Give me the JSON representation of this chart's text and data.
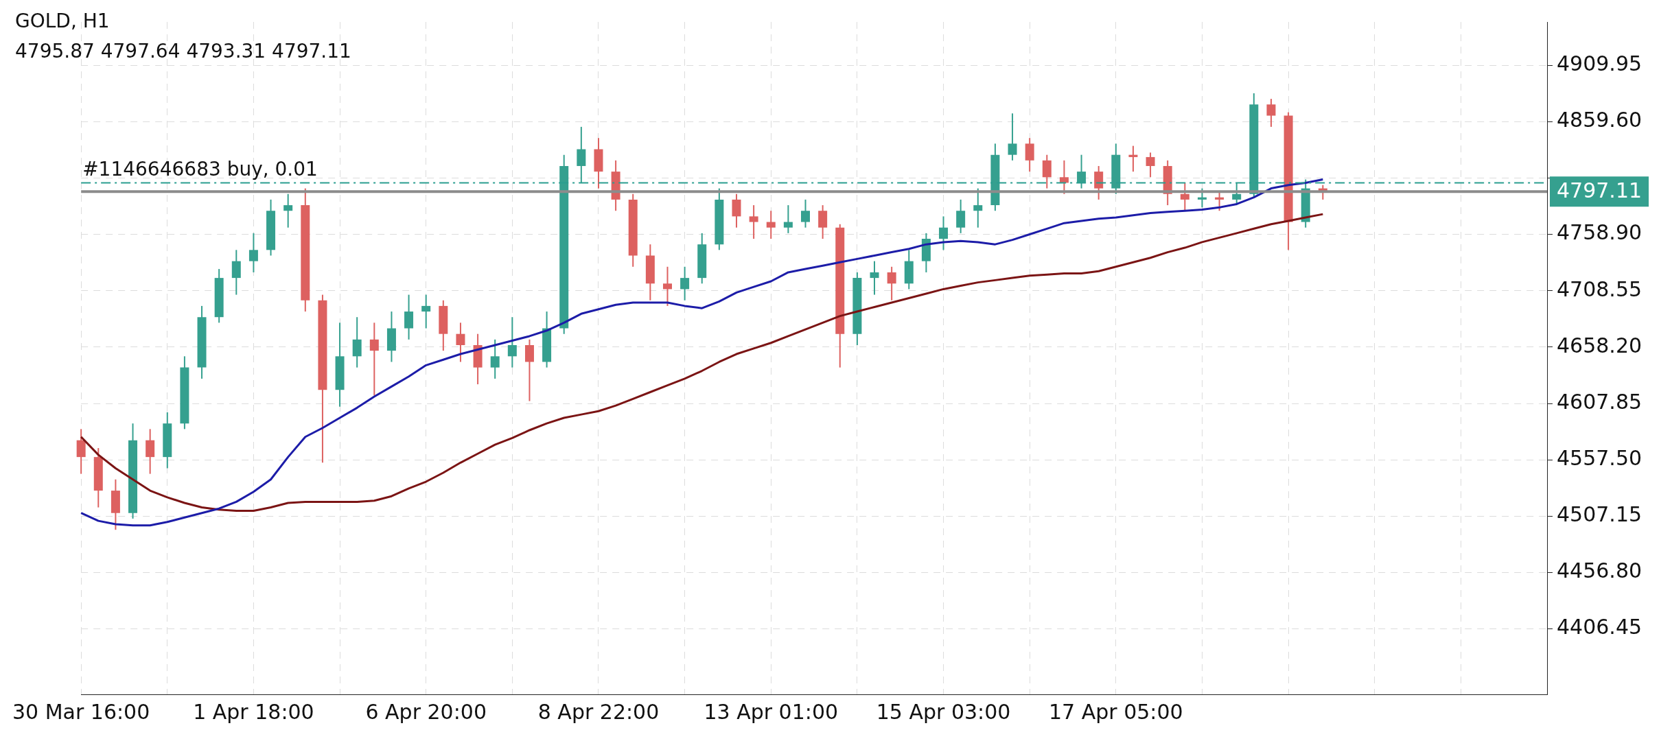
{
  "chart_data": {
    "type": "candlestick",
    "title": "GOLD, H1",
    "subtitle": "4795.87 4797.64 4793.31 4797.11",
    "categories": [
      "30 Mar 16:00",
      null,
      null,
      null,
      null,
      null,
      null,
      null,
      null,
      null,
      "1 Apr 18:00",
      null,
      null,
      null,
      null,
      null,
      null,
      null,
      null,
      null,
      "6 Apr 20:00",
      null,
      null,
      null,
      null,
      null,
      null,
      null,
      null,
      null,
      "8 Apr 22:00",
      null,
      null,
      null,
      null,
      null,
      null,
      null,
      null,
      null,
      "13 Apr 01:00",
      null,
      null,
      null,
      null,
      null,
      null,
      null,
      null,
      null,
      "15 Apr 03:00",
      null,
      null,
      null,
      null,
      null,
      null,
      null,
      null,
      null,
      "17 Apr 05:00",
      null,
      null,
      null,
      null,
      null,
      null,
      null,
      null,
      null,
      null,
      null,
      null,
      null,
      null,
      null,
      null,
      null,
      null,
      null,
      null,
      null,
      null,
      null,
      null,
      null
    ],
    "ohlc": [
      [
        4575,
        4585,
        4545,
        4560
      ],
      [
        4560,
        4568,
        4515,
        4530
      ],
      [
        4530,
        4540,
        4495,
        4510
      ],
      [
        4510,
        4590,
        4505,
        4575
      ],
      [
        4575,
        4585,
        4545,
        4560
      ],
      [
        4560,
        4600,
        4550,
        4590
      ],
      [
        4590,
        4650,
        4585,
        4640
      ],
      [
        4640,
        4695,
        4630,
        4685
      ],
      [
        4685,
        4728,
        4680,
        4720
      ],
      [
        4720,
        4745,
        4705,
        4735
      ],
      [
        4735,
        4760,
        4725,
        4745
      ],
      [
        4745,
        4790,
        4740,
        4780
      ],
      [
        4780,
        4795,
        4765,
        4785
      ],
      [
        4785,
        4800,
        4690,
        4700
      ],
      [
        4700,
        4705,
        4555,
        4620
      ],
      [
        4620,
        4680,
        4605,
        4650
      ],
      [
        4650,
        4685,
        4640,
        4665
      ],
      [
        4665,
        4680,
        4615,
        4655
      ],
      [
        4655,
        4690,
        4645,
        4675
      ],
      [
        4675,
        4705,
        4665,
        4690
      ],
      [
        4690,
        4705,
        4675,
        4695
      ],
      [
        4695,
        4700,
        4655,
        4670
      ],
      [
        4670,
        4680,
        4645,
        4660
      ],
      [
        4660,
        4670,
        4625,
        4640
      ],
      [
        4640,
        4665,
        4630,
        4650
      ],
      [
        4650,
        4685,
        4640,
        4660
      ],
      [
        4660,
        4665,
        4610,
        4645
      ],
      [
        4645,
        4690,
        4640,
        4675
      ],
      [
        4675,
        4830,
        4670,
        4820
      ],
      [
        4820,
        4855,
        4805,
        4835
      ],
      [
        4835,
        4845,
        4800,
        4815
      ],
      [
        4815,
        4825,
        4780,
        4790
      ],
      [
        4790,
        4795,
        4730,
        4740
      ],
      [
        4740,
        4750,
        4700,
        4715
      ],
      [
        4715,
        4730,
        4695,
        4710
      ],
      [
        4710,
        4730,
        4700,
        4720
      ],
      [
        4720,
        4760,
        4715,
        4750
      ],
      [
        4750,
        4800,
        4745,
        4790
      ],
      [
        4790,
        4795,
        4765,
        4775
      ],
      [
        4775,
        4785,
        4755,
        4770
      ],
      [
        4770,
        4780,
        4755,
        4765
      ],
      [
        4765,
        4785,
        4760,
        4770
      ],
      [
        4770,
        4790,
        4765,
        4780
      ],
      [
        4780,
        4785,
        4755,
        4765
      ],
      [
        4765,
        4768,
        4640,
        4670
      ],
      [
        4670,
        4725,
        4660,
        4720
      ],
      [
        4720,
        4735,
        4705,
        4725
      ],
      [
        4725,
        4730,
        4700,
        4715
      ],
      [
        4715,
        4745,
        4710,
        4735
      ],
      [
        4735,
        4760,
        4725,
        4755
      ],
      [
        4755,
        4775,
        4745,
        4765
      ],
      [
        4765,
        4790,
        4760,
        4780
      ],
      [
        4780,
        4800,
        4765,
        4785
      ],
      [
        4785,
        4840,
        4780,
        4830
      ],
      [
        4830,
        4867,
        4825,
        4840
      ],
      [
        4840,
        4845,
        4815,
        4825
      ],
      [
        4825,
        4830,
        4800,
        4810
      ],
      [
        4810,
        4825,
        4795,
        4805
      ],
      [
        4805,
        4830,
        4800,
        4815
      ],
      [
        4815,
        4820,
        4790,
        4800
      ],
      [
        4800,
        4840,
        4795,
        4830
      ],
      [
        4830,
        4838,
        4815,
        4828
      ],
      [
        4828,
        4832,
        4810,
        4820
      ],
      [
        4820,
        4825,
        4785,
        4795
      ],
      [
        4795,
        4805,
        4780,
        4790
      ],
      [
        4790,
        4800,
        4783,
        4792
      ],
      [
        4792,
        4798,
        4780,
        4790
      ],
      [
        4790,
        4805,
        4785,
        4795
      ],
      [
        4795,
        4885,
        4792,
        4875
      ],
      [
        4875,
        4880,
        4855,
        4865
      ],
      [
        4865,
        4868,
        4745,
        4770
      ],
      [
        4770,
        4808,
        4765,
        4800
      ],
      [
        4800,
        4803,
        4790,
        4797.11
      ],
      null,
      null,
      null,
      null,
      null,
      null,
      null,
      null,
      null,
      null,
      null,
      null,
      null
    ],
    "series": [
      {
        "type": "line",
        "color": "#1c1ca8",
        "values": [
          4510,
          4503,
          4500,
          4499,
          4499,
          4502,
          4506,
          4510,
          4514,
          4520,
          4529,
          4540,
          4560,
          4578,
          4586,
          4595,
          4604,
          4614,
          4623,
          4632,
          4642,
          4647,
          4652,
          4656,
          4660,
          4664,
          4668,
          4673,
          4680,
          4688,
          4692,
          4696,
          4698,
          4698,
          4698,
          4695,
          4693,
          4699,
          4707,
          4712,
          4717,
          4725,
          4728,
          4731,
          4734,
          4737,
          4740,
          4743,
          4746,
          4750,
          4752,
          4753,
          4752,
          4750,
          4754,
          4759,
          4764,
          4769,
          4771,
          4773,
          4774,
          4776,
          4778,
          4779,
          4780,
          4781,
          4783,
          4786,
          4792,
          4800,
          4803,
          4805,
          4808,
          null,
          null,
          null,
          null,
          null,
          null,
          null,
          null,
          null,
          null,
          null,
          null,
          null
        ]
      },
      {
        "type": "line",
        "color": "#7b1414",
        "values": [
          4578,
          4562,
          4550,
          4540,
          4530,
          4524,
          4519,
          4515,
          4513,
          4512,
          4512,
          4515,
          4519,
          4520,
          4520,
          4520,
          4520,
          4521,
          4525,
          4532,
          4538,
          4546,
          4555,
          4563,
          4571,
          4577,
          4584,
          4590,
          4595,
          4598,
          4601,
          4606,
          4612,
          4618,
          4624,
          4630,
          4637,
          4645,
          4652,
          4657,
          4662,
          4668,
          4674,
          4680,
          4686,
          4690,
          4694,
          4698,
          4702,
          4706,
          4710,
          4713,
          4716,
          4718,
          4720,
          4722,
          4723,
          4724,
          4724,
          4726,
          4730,
          4734,
          4738,
          4743,
          4747,
          4752,
          4756,
          4760,
          4764,
          4768,
          4771,
          4774,
          4777,
          null,
          null,
          null,
          null,
          null,
          null,
          null,
          null,
          null,
          null,
          null,
          null,
          null
        ]
      }
    ],
    "ylim": [
      4348,
      4948.7
    ],
    "yticks": [
      {
        "value": 4406.45,
        "label": "4406.45"
      },
      {
        "value": 4456.8,
        "label": "4456.80"
      },
      {
        "value": 4507.15,
        "label": "4507.15"
      },
      {
        "value": 4557.5,
        "label": "4557.50"
      },
      {
        "value": 4607.85,
        "label": "4607.85"
      },
      {
        "value": 4658.2,
        "label": "4658.20"
      },
      {
        "value": 4708.55,
        "label": "4708.55"
      },
      {
        "value": 4758.9,
        "label": "4758.90"
      },
      {
        "value": 4809.25,
        "label": null
      },
      {
        "value": 4859.6,
        "label": "4859.60"
      },
      {
        "value": 4909.95,
        "label": "4909.95"
      }
    ],
    "ref_lines": [
      {
        "axis": "y",
        "value": 4805,
        "label": "#1146646683 buy, 0.01",
        "color": "#2a9d8f",
        "line_style": "dashed"
      },
      {
        "axis": "y",
        "value": 4797.11,
        "label": "4797.11",
        "color": "#8c8c8c"
      }
    ],
    "grid": true
  }
}
